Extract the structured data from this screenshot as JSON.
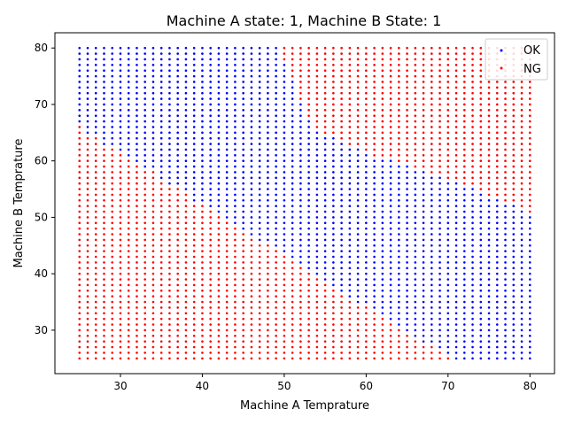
{
  "chart_data": {
    "type": "scatter",
    "title": "Machine A state: 1, Machine B State: 1",
    "xlabel": "Machine A Temprature",
    "ylabel": "Machine B Temprature",
    "xlim": [
      22,
      83
    ],
    "ylim": [
      22.3,
      82.7
    ],
    "xticks": [
      30,
      40,
      50,
      60,
      70,
      80
    ],
    "yticks": [
      30,
      40,
      50,
      60,
      70,
      80
    ],
    "grid": false,
    "legend_position": "top-right",
    "x_grid": {
      "start": 25,
      "end": 80,
      "step": 1
    },
    "y_grid": {
      "start": 25,
      "end": 80,
      "step": 1
    },
    "series": [
      {
        "name": "OK",
        "color": "#0000ff"
      },
      {
        "name": "NG",
        "color": "#ff0000"
      }
    ],
    "classification": "Each grid point (x, y) is OK when y > lower_boundary(x) and (x < 50 or y < upper_boundary(x)); otherwise NG.",
    "lower_boundary": [
      [
        25,
        66.2
      ],
      [
        26,
        64.6
      ],
      [
        27,
        64.0
      ],
      [
        28,
        62.9
      ],
      [
        29,
        62.0
      ],
      [
        30,
        61.2
      ],
      [
        31,
        60.4
      ],
      [
        32,
        59.6
      ],
      [
        33,
        58.8
      ],
      [
        34,
        58.0
      ],
      [
        35,
        56.8
      ],
      [
        36,
        55.6
      ],
      [
        37,
        55.0
      ],
      [
        38,
        54.2
      ],
      [
        39,
        52.6
      ],
      [
        40,
        52.2
      ],
      [
        41,
        51.4
      ],
      [
        42,
        50.6
      ],
      [
        43,
        49.6
      ],
      [
        44,
        48.6
      ],
      [
        45,
        47.8
      ],
      [
        46,
        46.8
      ],
      [
        47,
        45.8
      ],
      [
        48,
        45.0
      ],
      [
        49,
        44.0
      ],
      [
        50,
        43.2
      ],
      [
        51,
        42.2
      ],
      [
        52,
        41.2
      ],
      [
        53,
        40.2
      ],
      [
        54,
        39.4
      ],
      [
        55,
        38.4
      ],
      [
        56,
        37.6
      ],
      [
        57,
        36.6
      ],
      [
        58,
        35.6
      ],
      [
        59,
        34.6
      ],
      [
        60,
        34.0
      ],
      [
        61,
        33.0
      ],
      [
        62,
        32.2
      ],
      [
        63,
        31.2
      ],
      [
        64,
        30.6
      ],
      [
        65,
        29.6
      ],
      [
        66,
        28.8
      ],
      [
        67,
        27.8
      ],
      [
        68,
        27.0
      ],
      [
        69,
        26.0
      ],
      [
        70,
        25.6
      ],
      [
        71,
        24.4
      ],
      [
        72,
        24.4
      ],
      [
        73,
        24.4
      ],
      [
        74,
        24.4
      ],
      [
        75,
        24.4
      ],
      [
        76,
        24.4
      ],
      [
        77,
        24.4
      ],
      [
        78,
        24.4
      ],
      [
        79,
        24.4
      ],
      [
        80,
        24.4
      ]
    ],
    "upper_boundary": [
      [
        50,
        78.0
      ],
      [
        51,
        75.0
      ],
      [
        52,
        71.0
      ],
      [
        53,
        68.0
      ],
      [
        54,
        66.0
      ],
      [
        55,
        65.0
      ],
      [
        56,
        64.6
      ],
      [
        57,
        64.0
      ],
      [
        58,
        62.6
      ],
      [
        59,
        62.4
      ],
      [
        60,
        61.6
      ],
      [
        61,
        61.0
      ],
      [
        62,
        60.6
      ],
      [
        63,
        60.2
      ],
      [
        64,
        60.0
      ],
      [
        65,
        59.2
      ],
      [
        66,
        58.6
      ],
      [
        67,
        58.2
      ],
      [
        68,
        57.8
      ],
      [
        69,
        57.2
      ],
      [
        70,
        56.6
      ],
      [
        71,
        56.2
      ],
      [
        72,
        55.6
      ],
      [
        73,
        55.2
      ],
      [
        74,
        54.6
      ],
      [
        75,
        54.0
      ],
      [
        76,
        53.6
      ],
      [
        77,
        53.0
      ],
      [
        78,
        52.6
      ],
      [
        79,
        51.6
      ],
      [
        80,
        51.0
      ]
    ]
  }
}
